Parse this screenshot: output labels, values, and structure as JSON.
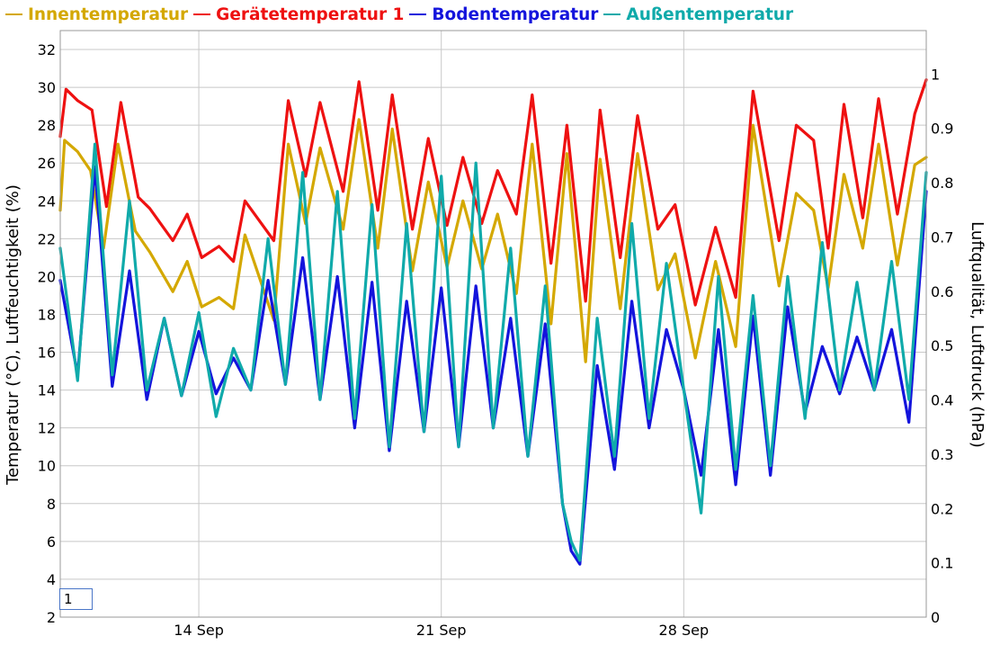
{
  "chart_data": {
    "type": "line",
    "legend_position": "top-left",
    "grid": true,
    "xlabel": "",
    "ylabel_left": "Temperatur (°C), Luftfeuchtigkeit (%)",
    "ylabel_right": "Luftqualität, Luftdruck (hPa)",
    "ylim_left": [
      2,
      33
    ],
    "ylim_right": [
      0,
      1.08
    ],
    "yticks_left": [
      "2",
      "4",
      "6",
      "8",
      "10",
      "12",
      "14",
      "16",
      "18",
      "20",
      "22",
      "24",
      "26",
      "28",
      "30",
      "32"
    ],
    "yticks_right": [
      "0",
      "0.1",
      "0.2",
      "0.3",
      "0.4",
      "0.5",
      "0.6",
      "0.7",
      "0.8",
      "0.9",
      "1"
    ],
    "xlim": [
      "2024-09-10",
      "2024-10-05"
    ],
    "xticks": [
      {
        "date": "2024-09-14",
        "label": "14 Sep"
      },
      {
        "date": "2024-09-21",
        "label": "21 Sep"
      },
      {
        "date": "2024-09-28",
        "label": "28 Sep"
      }
    ],
    "series": [
      {
        "name": "Innentemperatur",
        "color": "#d4a800",
        "points": [
          [
            "2024-09-10T00:00",
            23.5
          ],
          [
            "2024-09-10T03:00",
            27.2
          ],
          [
            "2024-09-10T12:00",
            26.6
          ],
          [
            "2024-09-10T21:00",
            25.6
          ],
          [
            "2024-09-11T06:00",
            21.5
          ],
          [
            "2024-09-11T16:00",
            27.0
          ],
          [
            "2024-09-12T04:00",
            22.4
          ],
          [
            "2024-09-12T14:00",
            21.3
          ],
          [
            "2024-09-13T06:00",
            19.2
          ],
          [
            "2024-09-13T16:00",
            20.8
          ],
          [
            "2024-09-14T02:00",
            18.4
          ],
          [
            "2024-09-14T14:00",
            18.9
          ],
          [
            "2024-09-15T00:00",
            18.3
          ],
          [
            "2024-09-15T08:00",
            22.2
          ],
          [
            "2024-09-16T04:00",
            17.7
          ],
          [
            "2024-09-16T14:00",
            27.0
          ],
          [
            "2024-09-17T02:00",
            22.8
          ],
          [
            "2024-09-17T12:00",
            26.8
          ],
          [
            "2024-09-18T04:00",
            22.5
          ],
          [
            "2024-09-18T15:00",
            28.3
          ],
          [
            "2024-09-19T04:00",
            21.5
          ],
          [
            "2024-09-19T14:00",
            27.8
          ],
          [
            "2024-09-20T04:00",
            20.3
          ],
          [
            "2024-09-20T15:00",
            25.0
          ],
          [
            "2024-09-21T04:00",
            20.5
          ],
          [
            "2024-09-21T15:00",
            24.0
          ],
          [
            "2024-09-22T04:00",
            20.4
          ],
          [
            "2024-09-22T15:00",
            23.3
          ],
          [
            "2024-09-23T04:00",
            19.1
          ],
          [
            "2024-09-23T15:00",
            27.0
          ],
          [
            "2024-09-24T04:00",
            17.5
          ],
          [
            "2024-09-24T15:00",
            26.5
          ],
          [
            "2024-09-25T04:00",
            15.5
          ],
          [
            "2024-09-25T14:00",
            26.2
          ],
          [
            "2024-09-26T04:00",
            18.3
          ],
          [
            "2024-09-26T16:00",
            26.5
          ],
          [
            "2024-09-27T06:00",
            19.3
          ],
          [
            "2024-09-27T18:00",
            21.2
          ],
          [
            "2024-09-28T08:00",
            15.7
          ],
          [
            "2024-09-28T22:00",
            20.8
          ],
          [
            "2024-09-29T12:00",
            16.3
          ],
          [
            "2024-09-30T00:00",
            28.0
          ],
          [
            "2024-09-30T18:00",
            19.5
          ],
          [
            "2024-10-01T06:00",
            24.4
          ],
          [
            "2024-10-01T18:00",
            23.5
          ],
          [
            "2024-10-02T04:00",
            19.4
          ],
          [
            "2024-10-02T15:00",
            25.4
          ],
          [
            "2024-10-03T04:00",
            21.5
          ],
          [
            "2024-10-03T15:00",
            27.0
          ],
          [
            "2024-10-04T04:00",
            20.6
          ],
          [
            "2024-10-04T16:00",
            25.9
          ],
          [
            "2024-10-05T00:00",
            26.3
          ]
        ]
      },
      {
        "name": "Gerätetemperatur 1",
        "color": "#ee1111",
        "points": [
          [
            "2024-09-10T00:00",
            27.4
          ],
          [
            "2024-09-10T04:00",
            29.9
          ],
          [
            "2024-09-10T12:00",
            29.3
          ],
          [
            "2024-09-10T22:00",
            28.8
          ],
          [
            "2024-09-11T08:00",
            23.7
          ],
          [
            "2024-09-11T18:00",
            29.2
          ],
          [
            "2024-09-12T06:00",
            24.2
          ],
          [
            "2024-09-12T14:00",
            23.6
          ],
          [
            "2024-09-13T06:00",
            21.9
          ],
          [
            "2024-09-13T16:00",
            23.3
          ],
          [
            "2024-09-14T02:00",
            21.0
          ],
          [
            "2024-09-14T14:00",
            21.6
          ],
          [
            "2024-09-15T00:00",
            20.8
          ],
          [
            "2024-09-15T08:00",
            24.0
          ],
          [
            "2024-09-16T04:00",
            21.9
          ],
          [
            "2024-09-16T14:00",
            29.3
          ],
          [
            "2024-09-17T02:00",
            25.3
          ],
          [
            "2024-09-17T12:00",
            29.2
          ],
          [
            "2024-09-18T04:00",
            24.5
          ],
          [
            "2024-09-18T15:00",
            30.3
          ],
          [
            "2024-09-19T04:00",
            23.5
          ],
          [
            "2024-09-19T14:00",
            29.6
          ],
          [
            "2024-09-20T04:00",
            22.5
          ],
          [
            "2024-09-20T15:00",
            27.3
          ],
          [
            "2024-09-21T04:00",
            22.7
          ],
          [
            "2024-09-21T15:00",
            26.3
          ],
          [
            "2024-09-22T04:00",
            22.8
          ],
          [
            "2024-09-22T15:00",
            25.6
          ],
          [
            "2024-09-23T04:00",
            23.3
          ],
          [
            "2024-09-23T15:00",
            29.6
          ],
          [
            "2024-09-24T04:00",
            20.7
          ],
          [
            "2024-09-24T15:00",
            28.0
          ],
          [
            "2024-09-25T04:00",
            18.7
          ],
          [
            "2024-09-25T14:00",
            28.8
          ],
          [
            "2024-09-26T04:00",
            21.0
          ],
          [
            "2024-09-26T16:00",
            28.5
          ],
          [
            "2024-09-27T06:00",
            22.5
          ],
          [
            "2024-09-27T18:00",
            23.8
          ],
          [
            "2024-09-28T08:00",
            18.5
          ],
          [
            "2024-09-28T22:00",
            22.6
          ],
          [
            "2024-09-29T12:00",
            18.9
          ],
          [
            "2024-09-30T00:00",
            29.8
          ],
          [
            "2024-09-30T18:00",
            21.9
          ],
          [
            "2024-10-01T06:00",
            28.0
          ],
          [
            "2024-10-01T18:00",
            27.2
          ],
          [
            "2024-10-02T04:00",
            21.5
          ],
          [
            "2024-10-02T15:00",
            29.1
          ],
          [
            "2024-10-03T04:00",
            23.1
          ],
          [
            "2024-10-03T15:00",
            29.4
          ],
          [
            "2024-10-04T04:00",
            23.3
          ],
          [
            "2024-10-04T16:00",
            28.6
          ],
          [
            "2024-10-05T00:00",
            30.4
          ]
        ]
      },
      {
        "name": "Bodentemperatur",
        "color": "#1414dc",
        "points": [
          [
            "2024-09-10T00:00",
            19.8
          ],
          [
            "2024-09-10T12:00",
            14.8
          ],
          [
            "2024-09-11T00:00",
            25.8
          ],
          [
            "2024-09-11T12:00",
            14.2
          ],
          [
            "2024-09-12T00:00",
            20.3
          ],
          [
            "2024-09-12T12:00",
            13.5
          ],
          [
            "2024-09-13T00:00",
            17.8
          ],
          [
            "2024-09-13T12:00",
            13.7
          ],
          [
            "2024-09-14T00:00",
            17.1
          ],
          [
            "2024-09-14T12:00",
            13.8
          ],
          [
            "2024-09-15T00:00",
            15.7
          ],
          [
            "2024-09-15T12:00",
            14.0
          ],
          [
            "2024-09-16T00:00",
            19.8
          ],
          [
            "2024-09-16T12:00",
            14.3
          ],
          [
            "2024-09-17T00:00",
            21.0
          ],
          [
            "2024-09-17T12:00",
            13.5
          ],
          [
            "2024-09-18T00:00",
            20.0
          ],
          [
            "2024-09-18T12:00",
            12.0
          ],
          [
            "2024-09-19T00:00",
            19.7
          ],
          [
            "2024-09-19T12:00",
            10.8
          ],
          [
            "2024-09-20T00:00",
            18.7
          ],
          [
            "2024-09-20T12:00",
            11.8
          ],
          [
            "2024-09-21T00:00",
            19.4
          ],
          [
            "2024-09-21T12:00",
            11.0
          ],
          [
            "2024-09-22T00:00",
            19.5
          ],
          [
            "2024-09-22T12:00",
            12.0
          ],
          [
            "2024-09-23T00:00",
            17.8
          ],
          [
            "2024-09-23T12:00",
            10.5
          ],
          [
            "2024-09-24T00:00",
            17.5
          ],
          [
            "2024-09-24T12:00",
            8.0
          ],
          [
            "2024-09-24T18:00",
            5.5
          ],
          [
            "2024-09-25T00:00",
            4.8
          ],
          [
            "2024-09-25T12:00",
            15.3
          ],
          [
            "2024-09-26T00:00",
            9.8
          ],
          [
            "2024-09-26T12:00",
            18.7
          ],
          [
            "2024-09-27T00:00",
            12.0
          ],
          [
            "2024-09-27T12:00",
            17.2
          ],
          [
            "2024-09-28T00:00",
            14.0
          ],
          [
            "2024-09-28T12:00",
            9.5
          ],
          [
            "2024-09-29T00:00",
            17.2
          ],
          [
            "2024-09-29T12:00",
            9.0
          ],
          [
            "2024-09-30T00:00",
            17.9
          ],
          [
            "2024-09-30T12:00",
            9.5
          ],
          [
            "2024-10-01T00:00",
            18.4
          ],
          [
            "2024-10-01T12:00",
            12.8
          ],
          [
            "2024-10-02T00:00",
            16.3
          ],
          [
            "2024-10-02T12:00",
            13.8
          ],
          [
            "2024-10-03T00:00",
            16.8
          ],
          [
            "2024-10-03T12:00",
            14.0
          ],
          [
            "2024-10-04T00:00",
            17.2
          ],
          [
            "2024-10-04T12:00",
            12.3
          ],
          [
            "2024-10-05T00:00",
            24.5
          ]
        ]
      },
      {
        "name": "Außentemperatur",
        "color": "#10aaaa",
        "points": [
          [
            "2024-09-10T00:00",
            21.5
          ],
          [
            "2024-09-10T12:00",
            14.5
          ],
          [
            "2024-09-11T00:00",
            27.0
          ],
          [
            "2024-09-11T12:00",
            14.8
          ],
          [
            "2024-09-12T00:00",
            24.0
          ],
          [
            "2024-09-12T12:00",
            14.0
          ],
          [
            "2024-09-13T00:00",
            17.8
          ],
          [
            "2024-09-13T12:00",
            13.7
          ],
          [
            "2024-09-14T00:00",
            18.1
          ],
          [
            "2024-09-14T12:00",
            12.6
          ],
          [
            "2024-09-15T00:00",
            16.2
          ],
          [
            "2024-09-15T12:00",
            14.0
          ],
          [
            "2024-09-16T00:00",
            22.0
          ],
          [
            "2024-09-16T12:00",
            14.3
          ],
          [
            "2024-09-17T00:00",
            25.5
          ],
          [
            "2024-09-17T12:00",
            13.5
          ],
          [
            "2024-09-18T00:00",
            24.5
          ],
          [
            "2024-09-18T12:00",
            12.5
          ],
          [
            "2024-09-19T00:00",
            23.8
          ],
          [
            "2024-09-19T12:00",
            11.0
          ],
          [
            "2024-09-20T00:00",
            22.8
          ],
          [
            "2024-09-20T12:00",
            11.8
          ],
          [
            "2024-09-21T00:00",
            25.3
          ],
          [
            "2024-09-21T12:00",
            11.0
          ],
          [
            "2024-09-22T00:00",
            26.0
          ],
          [
            "2024-09-22T12:00",
            12.0
          ],
          [
            "2024-09-23T00:00",
            21.5
          ],
          [
            "2024-09-23T12:00",
            10.5
          ],
          [
            "2024-09-24T00:00",
            19.5
          ],
          [
            "2024-09-24T12:00",
            8.0
          ],
          [
            "2024-09-24T18:00",
            6.0
          ],
          [
            "2024-09-25T00:00",
            5.0
          ],
          [
            "2024-09-25T12:00",
            17.8
          ],
          [
            "2024-09-26T00:00",
            10.5
          ],
          [
            "2024-09-26T12:00",
            22.8
          ],
          [
            "2024-09-27T00:00",
            12.5
          ],
          [
            "2024-09-27T12:00",
            20.7
          ],
          [
            "2024-09-28T00:00",
            14.0
          ],
          [
            "2024-09-28T12:00",
            7.5
          ],
          [
            "2024-09-29T00:00",
            20.0
          ],
          [
            "2024-09-29T12:00",
            9.8
          ],
          [
            "2024-09-30T00:00",
            19.0
          ],
          [
            "2024-09-30T12:00",
            10.0
          ],
          [
            "2024-10-01T00:00",
            20.0
          ],
          [
            "2024-10-01T12:00",
            12.5
          ],
          [
            "2024-10-02T00:00",
            21.8
          ],
          [
            "2024-10-02T12:00",
            14.0
          ],
          [
            "2024-10-03T00:00",
            19.7
          ],
          [
            "2024-10-03T12:00",
            14.0
          ],
          [
            "2024-10-04T00:00",
            20.8
          ],
          [
            "2024-10-04T12:00",
            13.5
          ],
          [
            "2024-10-05T00:00",
            25.5
          ]
        ]
      }
    ]
  },
  "input": {
    "value": "1"
  }
}
